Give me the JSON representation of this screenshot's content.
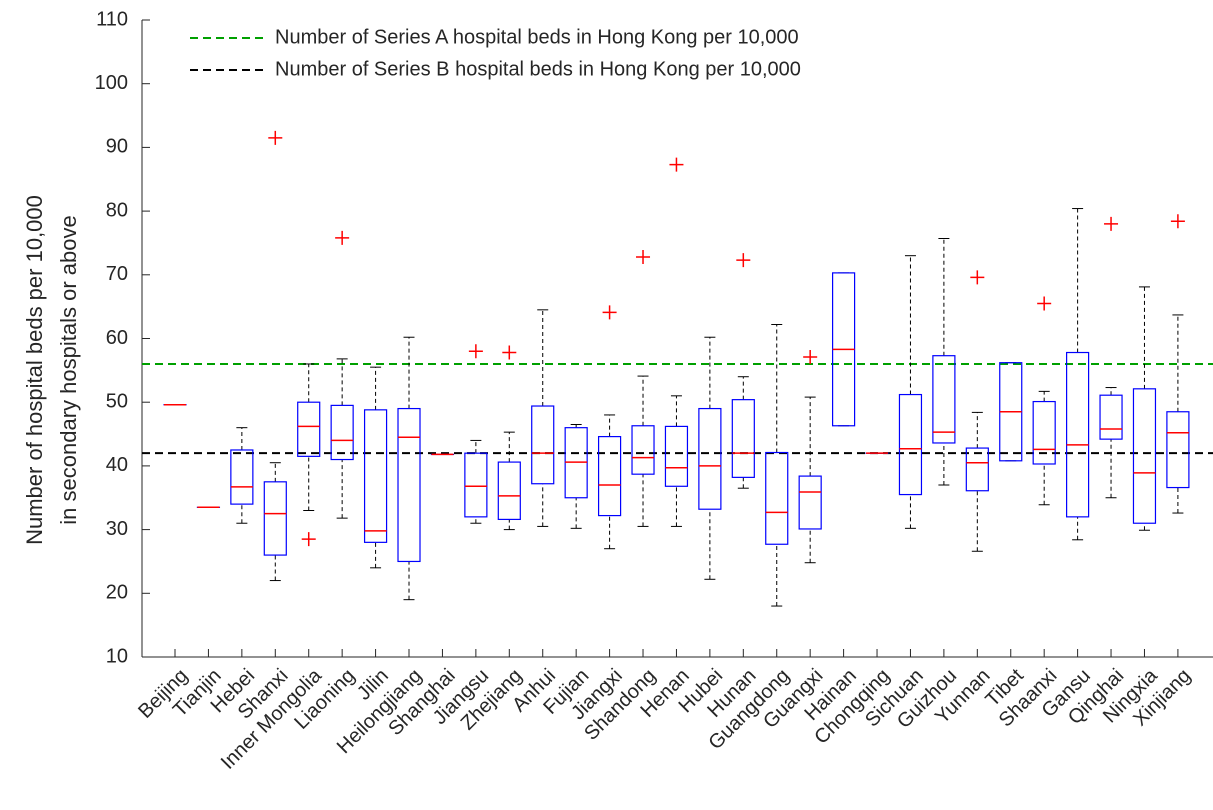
{
  "chart_data": {
    "type": "box",
    "y_label": [
      "Number of hospital beds per 10,000",
      "in secondary hospitals or above"
    ],
    "categories": [
      "Beijing",
      "Tianjin",
      "Hebei",
      "Shanxi",
      "Inner Mongolia",
      "Liaoning",
      "Jilin",
      "Heilongjiang",
      "Shanghai",
      "Jiangsu",
      "Zhejiang",
      "Anhui",
      "Fujian",
      "Jiangxi",
      "Shandong",
      "Henan",
      "Hubei",
      "Hunan",
      "Guangdong",
      "Guangxi",
      "Hainan",
      "Chongqing",
      "Sichuan",
      "Guizhou",
      "Yunnan",
      "Tibet",
      "Shaanxi",
      "Gansu",
      "Qinghai",
      "Ningxia",
      "Xinjiang"
    ],
    "boxes": [
      {
        "min": 49.6,
        "q1": 49.6,
        "median": 49.6,
        "q3": 49.6,
        "max": 49.6
      },
      {
        "min": 33.5,
        "q1": 33.5,
        "median": 33.5,
        "q3": 33.5,
        "max": 33.5
      },
      {
        "min": 31,
        "q1": 34,
        "median": 36.7,
        "q3": 42.5,
        "max": 46
      },
      {
        "min": 22,
        "q1": 26,
        "median": 32.5,
        "q3": 37.5,
        "max": 40.5,
        "outliers": [
          91.5
        ]
      },
      {
        "min": 33,
        "q1": 41.5,
        "median": 46.2,
        "q3": 50,
        "max": 56,
        "outliers": [
          28.5
        ]
      },
      {
        "min": 31.8,
        "q1": 41,
        "median": 44,
        "q3": 49.5,
        "max": 56.8,
        "outliers": [
          75.8
        ]
      },
      {
        "min": 24,
        "q1": 28,
        "median": 29.8,
        "q3": 48.8,
        "max": 55.5
      },
      {
        "min": 19,
        "q1": 25,
        "median": 44.5,
        "q3": 49,
        "max": 60.2
      },
      {
        "min": 41.8,
        "q1": 41.8,
        "median": 41.8,
        "q3": 41.8,
        "max": 41.8
      },
      {
        "min": 31,
        "q1": 32,
        "median": 36.8,
        "q3": 42,
        "max": 44,
        "outliers": [
          58
        ]
      },
      {
        "min": 30,
        "q1": 31.6,
        "median": 35.3,
        "q3": 40.6,
        "max": 45.3,
        "outliers": [
          57.8
        ]
      },
      {
        "min": 30.5,
        "q1": 37.2,
        "median": 42,
        "q3": 49.4,
        "max": 64.5
      },
      {
        "min": 30.2,
        "q1": 35,
        "median": 40.6,
        "q3": 46,
        "max": 46.5
      },
      {
        "min": 27,
        "q1": 32.2,
        "median": 37,
        "q3": 44.6,
        "max": 48,
        "outliers": [
          64.1
        ]
      },
      {
        "min": 30.5,
        "q1": 38.7,
        "median": 41.3,
        "q3": 46.3,
        "max": 54.1,
        "outliers": [
          72.8
        ]
      },
      {
        "min": 30.5,
        "q1": 36.8,
        "median": 39.7,
        "q3": 46.2,
        "max": 51,
        "outliers": [
          87.3
        ]
      },
      {
        "min": 22.2,
        "q1": 33.2,
        "median": 40,
        "q3": 49,
        "max": 60.2
      },
      {
        "min": 36.5,
        "q1": 38.2,
        "median": 42,
        "q3": 50.4,
        "max": 54,
        "outliers": [
          72.3
        ]
      },
      {
        "min": 18,
        "q1": 27.7,
        "median": 32.7,
        "q3": 42.1,
        "max": 62.2
      },
      {
        "min": 24.8,
        "q1": 30.1,
        "median": 35.9,
        "q3": 38.4,
        "max": 50.8,
        "outliers": [
          57.1
        ]
      },
      {
        "min": 46.3,
        "q1": 46.3,
        "median": 58.3,
        "q3": 70.3,
        "max": 70.3
      },
      {
        "min": 42,
        "q1": 42,
        "median": 42,
        "q3": 42,
        "max": 42
      },
      {
        "min": 30.2,
        "q1": 35.5,
        "median": 42.7,
        "q3": 51.2,
        "max": 73
      },
      {
        "min": 37,
        "q1": 43.6,
        "median": 45.3,
        "q3": 57.3,
        "max": 75.7
      },
      {
        "min": 26.6,
        "q1": 36.1,
        "median": 40.5,
        "q3": 42.8,
        "max": 48.4,
        "outliers": [
          69.6
        ]
      },
      {
        "min": 40.8,
        "q1": 40.8,
        "median": 48.5,
        "q3": 56.2,
        "max": 56.2
      },
      {
        "min": 33.9,
        "q1": 40.3,
        "median": 42.6,
        "q3": 50.1,
        "max": 51.7,
        "outliers": [
          65.5
        ]
      },
      {
        "min": 28.4,
        "q1": 32,
        "median": 43.3,
        "q3": 57.8,
        "max": 80.4
      },
      {
        "min": 35,
        "q1": 44.2,
        "median": 45.8,
        "q3": 51.1,
        "max": 52.3,
        "outliers": [
          78
        ]
      },
      {
        "min": 29.9,
        "q1": 31,
        "median": 38.9,
        "q3": 52.1,
        "max": 68.1
      },
      {
        "min": 32.6,
        "q1": 36.6,
        "median": 45.2,
        "q3": 48.5,
        "max": 63.7,
        "outliers": [
          78.4
        ]
      }
    ],
    "box_color": "#0000ff",
    "median_color": "#ff0000",
    "whisker_color": "#000000",
    "outlier_color": "#ff0000",
    "reference_lines": [
      {
        "name": "Number of Series A hospital beds in Hong Kong per 10,000",
        "value": 56,
        "color": "#00a000"
      },
      {
        "name": "Number of Series B hospital beds in Hong Kong per 10,000",
        "value": 42,
        "color": "#000000"
      }
    ],
    "ylim": [
      10,
      110
    ],
    "yticks": [
      10,
      20,
      30,
      40,
      50,
      60,
      70,
      80,
      90,
      100,
      110
    ]
  }
}
